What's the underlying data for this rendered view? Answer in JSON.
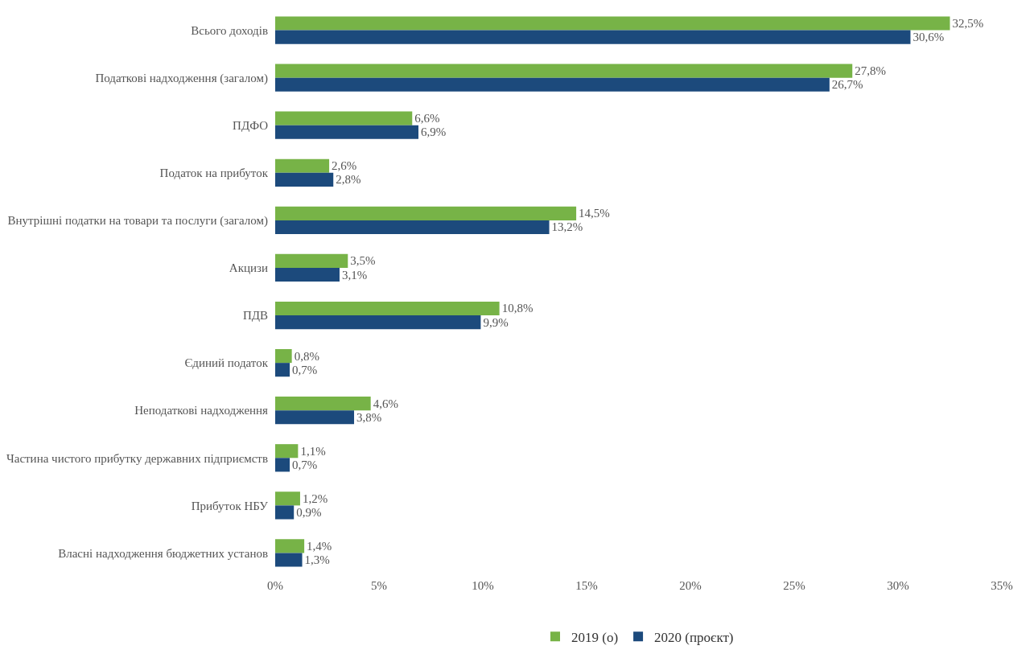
{
  "chart_data": {
    "type": "bar",
    "orientation": "horizontal",
    "categories": [
      "Всього доходів",
      "Податкові надходження (загалом)",
      "ПДФО",
      "Податок на прибуток",
      "Внутрішні податки на товари та послуги (загалом)",
      "Акцизи",
      "ПДВ",
      "Єдиний податок",
      "Неподаткові надходження",
      "Частина чистого прибутку державних підприємств",
      "Прибуток НБУ",
      "Власні надходження бюджетних установ"
    ],
    "series": [
      {
        "name": "2019 (о)",
        "color": "#77b347",
        "values": [
          32.5,
          27.8,
          6.6,
          2.6,
          14.5,
          3.5,
          10.8,
          0.8,
          4.6,
          1.1,
          1.2,
          1.4
        ],
        "value_labels": [
          "32,5%",
          "27,8%",
          "6,6%",
          "2,6%",
          "14,5%",
          "3,5%",
          "10,8%",
          "0,8%",
          "4,6%",
          "1,1%",
          "1,2%",
          "1,4%"
        ]
      },
      {
        "name": "2020 (проєкт)",
        "color": "#1c4a7c",
        "values": [
          30.6,
          26.7,
          6.9,
          2.8,
          13.2,
          3.1,
          9.9,
          0.7,
          3.8,
          0.7,
          0.9,
          1.3
        ],
        "value_labels": [
          "30,6%",
          "26,7%",
          "6,9%",
          "2,8%",
          "13,2%",
          "3,1%",
          "9,9%",
          "0,7%",
          "3,8%",
          "0,7%",
          "0,9%",
          "1,3%"
        ]
      }
    ],
    "xlim": [
      0,
      35
    ],
    "xticks": [
      {
        "value": 0,
        "label": "0%"
      },
      {
        "value": 5,
        "label": "5%"
      },
      {
        "value": 10,
        "label": "10%"
      },
      {
        "value": 15,
        "label": "15%"
      },
      {
        "value": 20,
        "label": "20%"
      },
      {
        "value": 25,
        "label": "25%"
      },
      {
        "value": 30,
        "label": "30%"
      },
      {
        "value": 35,
        "label": "35%"
      }
    ],
    "grid": false,
    "legend": "bottom"
  }
}
